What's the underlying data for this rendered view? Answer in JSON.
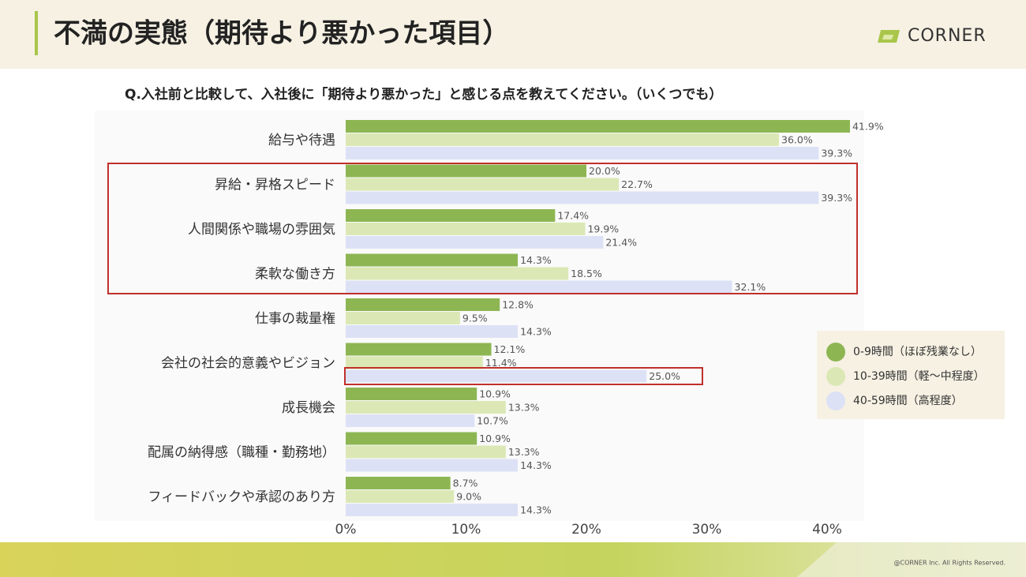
{
  "header": {
    "title": "不満の実態（期待より悪かった項目）",
    "logo": "CORNER"
  },
  "footer": {
    "copyright": "@CORNER Inc. All Rights Reserved."
  },
  "chart_data": {
    "type": "hbar",
    "title": "Q.入社前と比較して、入社後に「期待より悪かった」と感じる点を教えてください。（いくつでも）",
    "categories": [
      "給与や待遇",
      "昇給・昇格スピード",
      "人間関係や職場の雰囲気",
      "柔軟な働き方",
      "仕事の裁量権",
      "会社の社会的意義やビジョン",
      "成長機会",
      "配属の納得感（職種・勤務地）",
      "フィードバックや承認のあり方"
    ],
    "series": [
      {
        "name": "0-9時間（ほぼ残業なし）",
        "color": "#8db653",
        "values": [
          41.9,
          20.0,
          17.4,
          14.3,
          12.8,
          12.1,
          10.9,
          10.9,
          8.7
        ],
        "value_labels": [
          "41.9%",
          "20.0%",
          "17.4%",
          "14.3%",
          "12.8%",
          "12.1%",
          "10.9%",
          "10.9%",
          "8.7%"
        ]
      },
      {
        "name": "10-39時間（軽〜中程度）",
        "color": "#dbe8b5",
        "values": [
          36.0,
          22.7,
          19.9,
          18.5,
          9.5,
          11.4,
          13.3,
          13.3,
          9.0
        ],
        "value_labels": [
          "36.0%",
          "22.7%",
          "19.9%",
          "18.5%",
          "9.5%",
          "11.4%",
          "13.3%",
          "13.3%",
          "9.0%"
        ]
      },
      {
        "name": "40-59時間（高程度）",
        "color": "#dde1f5",
        "values": [
          39.3,
          39.3,
          21.4,
          32.1,
          14.3,
          25.0,
          10.7,
          14.3,
          14.3
        ],
        "value_labels": [
          "39.3%",
          "39.3%",
          "21.4%",
          "32.1%",
          "14.3%",
          "25.0%",
          "10.7%",
          "14.3%",
          "14.3%"
        ]
      }
    ],
    "xlim": [
      0,
      42
    ],
    "xticks": [
      {
        "value": 0,
        "label": "0%"
      },
      {
        "value": 10,
        "label": "10%"
      },
      {
        "value": 20,
        "label": "20%"
      },
      {
        "value": 30,
        "label": "30%"
      },
      {
        "value": 40,
        "label": "40%"
      }
    ],
    "grid": false
  }
}
